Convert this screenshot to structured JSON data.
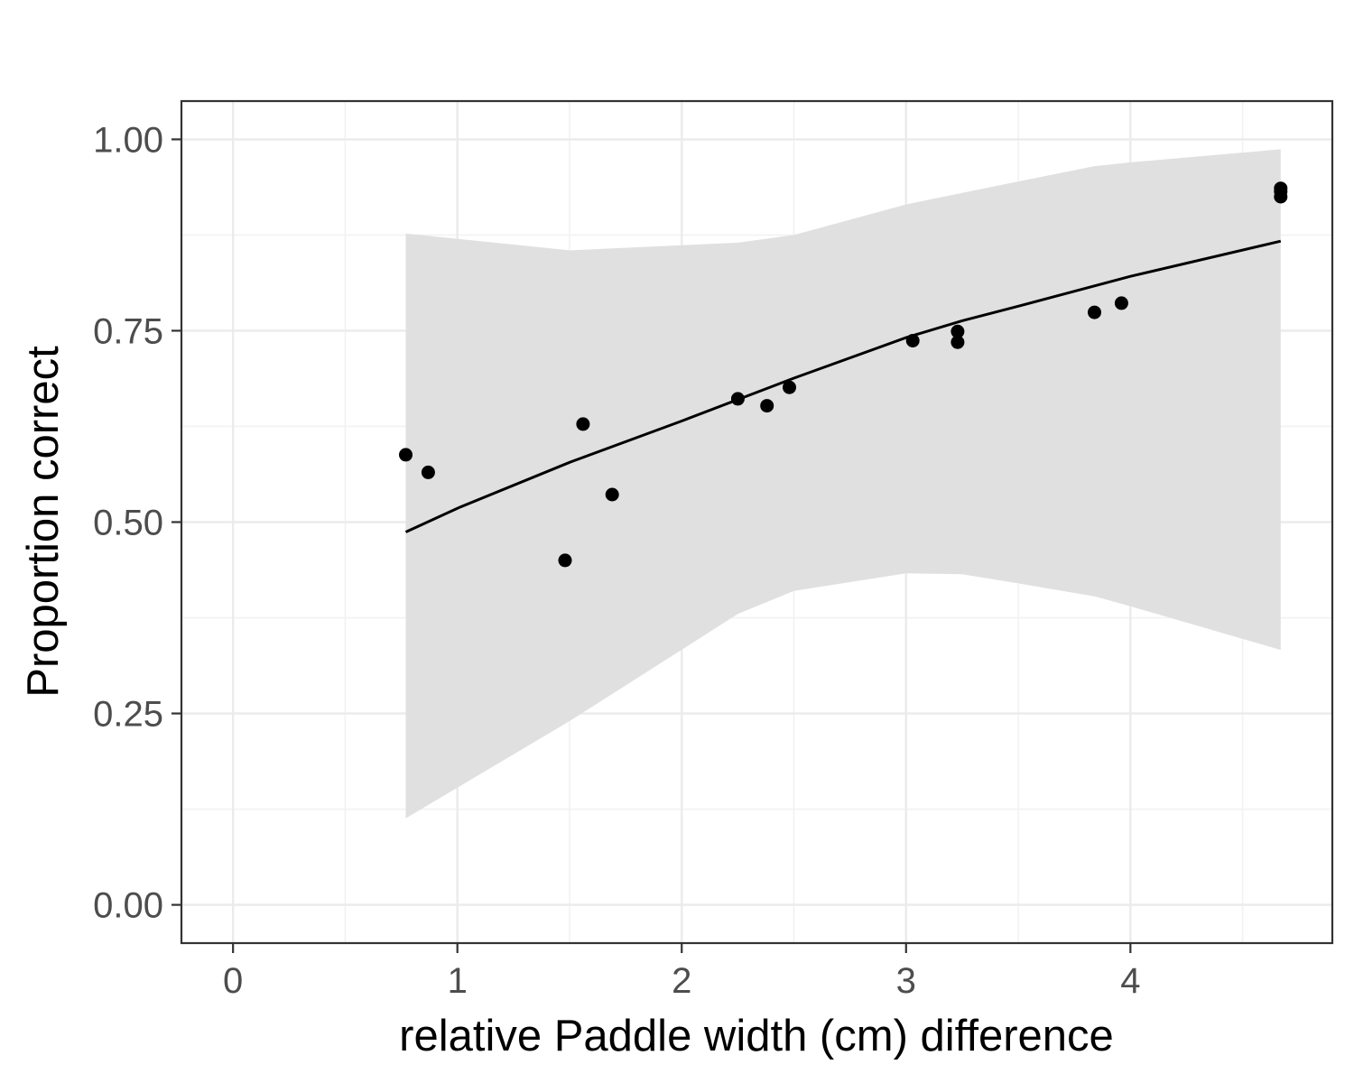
{
  "chart_data": {
    "type": "scatter",
    "title": "",
    "xlabel": "relative Paddle width (cm) difference",
    "ylabel": "Proportion correct",
    "xlim": [
      -0.23,
      4.9
    ],
    "ylim": [
      -0.05,
      1.05
    ],
    "x_ticks": [
      0,
      1,
      2,
      3,
      4
    ],
    "x_tick_labels": [
      "0",
      "1",
      "2",
      "3",
      "4"
    ],
    "y_ticks": [
      0.0,
      0.25,
      0.5,
      0.75,
      1.0
    ],
    "y_tick_labels": [
      "0.00",
      "0.25",
      "0.50",
      "0.75",
      "1.00"
    ],
    "grid": true,
    "theme": "bw",
    "points": [
      {
        "x": 0.77,
        "y": 0.588
      },
      {
        "x": 0.87,
        "y": 0.565
      },
      {
        "x": 1.48,
        "y": 0.45
      },
      {
        "x": 1.56,
        "y": 0.628
      },
      {
        "x": 1.69,
        "y": 0.536
      },
      {
        "x": 2.25,
        "y": 0.661
      },
      {
        "x": 2.38,
        "y": 0.652
      },
      {
        "x": 2.48,
        "y": 0.676
      },
      {
        "x": 3.03,
        "y": 0.737
      },
      {
        "x": 3.23,
        "y": 0.749
      },
      {
        "x": 3.23,
        "y": 0.735
      },
      {
        "x": 3.84,
        "y": 0.774
      },
      {
        "x": 3.96,
        "y": 0.786
      },
      {
        "x": 4.67,
        "y": 0.936
      },
      {
        "x": 4.67,
        "y": 0.932
      },
      {
        "x": 4.67,
        "y": 0.925
      }
    ],
    "fit_line": {
      "x": [
        0.77,
        1.0,
        1.5,
        2.0,
        2.5,
        3.0,
        3.25,
        3.5,
        4.0,
        4.67
      ],
      "y": [
        0.487,
        0.518,
        0.578,
        0.632,
        0.688,
        0.741,
        0.763,
        0.782,
        0.821,
        0.867
      ]
    },
    "confidence_band": {
      "x": [
        0.77,
        1.5,
        2.25,
        2.5,
        3.0,
        3.25,
        3.5,
        3.84,
        4.0,
        4.67
      ],
      "lower": [
        0.113,
        0.24,
        0.38,
        0.41,
        0.433,
        0.432,
        0.42,
        0.403,
        0.39,
        0.333
      ],
      "upper": [
        0.877,
        0.855,
        0.865,
        0.875,
        0.915,
        0.93,
        0.945,
        0.965,
        0.97,
        0.987
      ]
    },
    "colors": {
      "points": "#000000",
      "line": "#000000",
      "band": "#e0e0e0",
      "grid_major": "#ebebeb",
      "grid_minor": "#f2f2f2",
      "panel_border": "#333333",
      "tick_text": "#4d4d4d"
    }
  }
}
